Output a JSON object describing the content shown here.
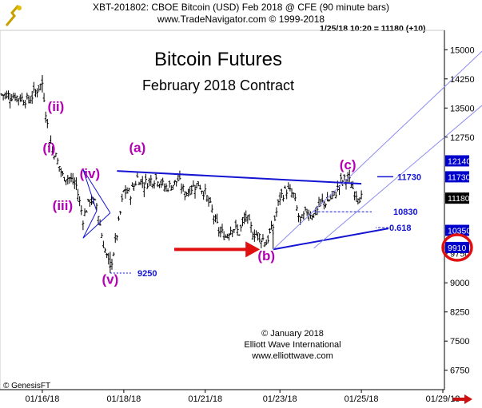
{
  "header": {
    "line1": "XBT-201802:  CBOE Bitcoin (USD) Feb 2018 @ CFE  (90 minute bars)",
    "line2": "www.TradeNavigator.com © 1999-2018",
    "readout": "1/25/18 10:20 = 11180 (+10)"
  },
  "footer": {
    "source": "© GenesisFT"
  },
  "colors": {
    "wave_label": "#b400b4",
    "trendline": "#1414d2",
    "channel": "#8c8cf0",
    "arrow": "#e01010",
    "price_tag_bg": "#0000cc",
    "current_tag_bg": "#000000",
    "bars": "#000000"
  },
  "chart_data": {
    "type": "ohlc",
    "title": "Bitcoin Futures",
    "subtitle": "February 2018 Contract",
    "bar_interval": "90 minute bars",
    "ylim": [
      6250,
      15500
    ],
    "y_ticks": [
      6750,
      7500,
      8250,
      9000,
      9750,
      10350,
      11730,
      12140,
      12750,
      13500,
      14250,
      15000
    ],
    "x_ticks": [
      "01/16/18",
      "01/18/18",
      "01/21/18",
      "01/23/18",
      "01/25/18",
      "01/29/18"
    ],
    "x_tick_index": [
      6,
      18,
      30,
      41,
      53,
      65
    ],
    "n_bars": 66,
    "close_path": [
      [
        0,
        13850
      ],
      [
        2,
        13800
      ],
      [
        4,
        13700
      ],
      [
        6,
        14150
      ],
      [
        7,
        12700
      ],
      [
        8,
        12250
      ],
      [
        9,
        11750
      ],
      [
        10,
        11700
      ],
      [
        11,
        11500
      ],
      [
        12,
        10650
      ],
      [
        13,
        11150
      ],
      [
        14,
        11000
      ],
      [
        15,
        10000
      ],
      [
        16,
        9350
      ],
      [
        17,
        10250
      ],
      [
        18,
        11350
      ],
      [
        19,
        11300
      ],
      [
        20,
        11700
      ],
      [
        21,
        11550
      ],
      [
        22,
        11650
      ],
      [
        23,
        11700
      ],
      [
        24,
        11450
      ],
      [
        25,
        11500
      ],
      [
        26,
        11650
      ],
      [
        27,
        11300
      ],
      [
        28,
        11450
      ],
      [
        29,
        11550
      ],
      [
        30,
        11300
      ],
      [
        31,
        10850
      ],
      [
        32,
        10350
      ],
      [
        33,
        10200
      ],
      [
        34,
        10450
      ],
      [
        35,
        10300
      ],
      [
        36,
        10700
      ],
      [
        37,
        10300
      ],
      [
        38,
        10200
      ],
      [
        39,
        10050
      ],
      [
        40,
        10450
      ],
      [
        41,
        11200
      ],
      [
        42,
        11400
      ],
      [
        43,
        11250
      ],
      [
        44,
        10550
      ],
      [
        45,
        10850
      ],
      [
        46,
        10750
      ],
      [
        47,
        11050
      ],
      [
        48,
        11100
      ],
      [
        49,
        11250
      ],
      [
        50,
        11600
      ],
      [
        51,
        11700
      ],
      [
        52,
        11350
      ],
      [
        53,
        11180
      ]
    ],
    "wave_labels": [
      {
        "text": "(ii)",
        "bar": 8,
        "price": 13420
      },
      {
        "text": "(i)",
        "bar": 7,
        "price": 12350
      },
      {
        "text": "(iv)",
        "bar": 13,
        "price": 11700
      },
      {
        "text": "(iii)",
        "bar": 9,
        "price": 10880
      },
      {
        "text": "(v)",
        "bar": 16,
        "price": 8970
      },
      {
        "text": "(a)",
        "bar": 20,
        "price": 12370
      },
      {
        "text": "(b)",
        "bar": 39,
        "price": 9580
      },
      {
        "text": "(c)",
        "bar": 51,
        "price": 11920
      }
    ],
    "price_levels": [
      {
        "label": "11730",
        "price": 11730
      },
      {
        "label": "10830",
        "price": 10830
      },
      {
        "label": "0.618",
        "price": 10420
      },
      {
        "label": "9250",
        "price": 9250
      }
    ],
    "axis_tags": [
      {
        "label": "12140",
        "price": 12140,
        "kind": "blue"
      },
      {
        "label": "11730",
        "price": 11730,
        "kind": "blue"
      },
      {
        "label": "11180",
        "price": 11180,
        "kind": "current"
      },
      {
        "label": "10350",
        "price": 10350,
        "kind": "blue"
      },
      {
        "label": "9910",
        "price": 9910,
        "kind": "blue-circled"
      }
    ],
    "trendlines": [
      {
        "from": [
          17,
          11880
        ],
        "to": [
          53,
          11550
        ]
      },
      {
        "from": [
          40,
          9860
        ],
        "to": [
          57,
          10400
        ]
      },
      {
        "from": [
          40,
          9860
        ],
        "to": [
          71,
          15000
        ]
      },
      {
        "from": [
          46,
          9890
        ],
        "to": [
          71,
          13600
        ]
      },
      {
        "from": [
          12,
          11920
        ],
        "to": [
          16,
          10800
        ]
      },
      {
        "from": [
          16,
          10800
        ],
        "to": [
          12,
          10150
        ]
      }
    ],
    "annotations": [
      "© January 2018",
      "Elliott Wave International",
      "www.elliottwave.com"
    ]
  }
}
